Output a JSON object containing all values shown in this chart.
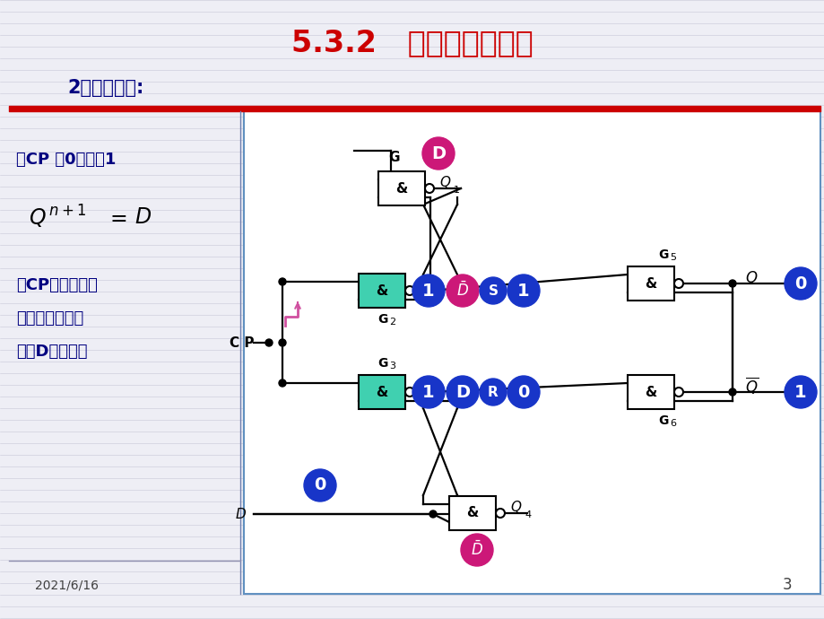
{
  "title": "5.3.2   维持阻塞触发器",
  "subtitle": "2、工作原理:",
  "bg_color": "#eeeef5",
  "title_color": "#cc0000",
  "subtitle_color": "#000080",
  "text_color": "#000080",
  "diagram_bg": "#ffffff",
  "red_bar_color": "#cc0000",
  "gate_fill_teal": "#40d0b0",
  "gate_fill_white": "#ffffff",
  "circle_blue": "#1835c8",
  "circle_pink": "#cc1878",
  "date_text": "2021/6/16",
  "page_num": "3",
  "line_color": "#b0b0c8",
  "divider_color": "#7080b0"
}
